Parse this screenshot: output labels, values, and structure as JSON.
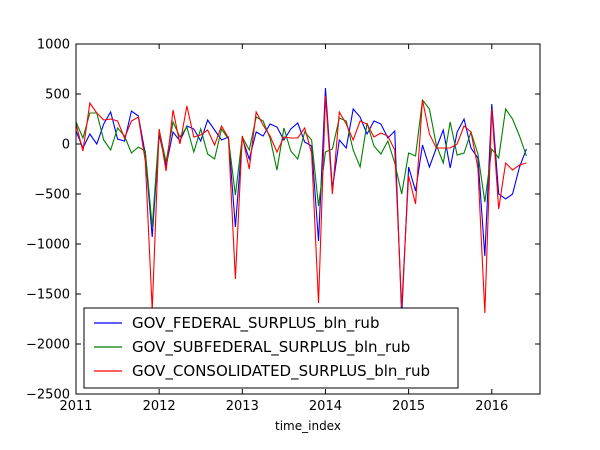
{
  "chart_data": {
    "type": "line",
    "xlabel": "time_index",
    "ylabel": "",
    "xlim": [
      2011.0,
      2016.58
    ],
    "ylim": [
      -2500,
      1000
    ],
    "x_ticks": [
      2011,
      2012,
      2013,
      2014,
      2015,
      2016
    ],
    "x_tick_labels": [
      "2011",
      "2012",
      "2013",
      "2014",
      "2015",
      "2016"
    ],
    "y_ticks": [
      1000,
      500,
      0,
      -500,
      -1000,
      -1500,
      -2000,
      -2500
    ],
    "y_tick_labels": [
      "1000",
      "500",
      "0",
      "−500",
      "−1000",
      "−1500",
      "−2000",
      "−2500"
    ],
    "x_start": 2011.0,
    "x_step_months": 1,
    "legend_position": "lower-left",
    "series": [
      {
        "name": "GOV_FEDERAL_SURPLUS_bln_rub",
        "color": "#0000ff",
        "values": [
          130,
          -40,
          100,
          0,
          200,
          320,
          50,
          30,
          330,
          280,
          -100,
          -930,
          100,
          -220,
          120,
          30,
          180,
          150,
          30,
          240,
          140,
          40,
          70,
          -830,
          60,
          -150,
          120,
          80,
          200,
          170,
          40,
          150,
          210,
          20,
          -20,
          -970,
          560,
          -450,
          40,
          -40,
          350,
          270,
          100,
          230,
          200,
          60,
          130,
          -1720,
          -230,
          -470,
          -10,
          -230,
          -40,
          140,
          -240,
          120,
          250,
          -40,
          -140,
          -1120,
          400,
          -500,
          -550,
          -500,
          -230,
          -50
        ],
        "notes": "monthly values read off the chart"
      },
      {
        "name": "GOV_SUBFEDERAL_SURPLUS_bln_rub",
        "color": "#008000",
        "values": [
          220,
          60,
          310,
          310,
          40,
          -60,
          160,
          80,
          -90,
          -30,
          -70,
          -830,
          140,
          -180,
          220,
          70,
          170,
          -80,
          150,
          -100,
          -150,
          150,
          50,
          -510,
          70,
          -60,
          270,
          230,
          60,
          -260,
          160,
          -70,
          -150,
          120,
          40,
          -620,
          -80,
          -50,
          260,
          230,
          -60,
          -230,
          210,
          -20,
          -100,
          30,
          -190,
          -500,
          -90,
          -120,
          440,
          350,
          -10,
          -190,
          220,
          -110,
          -90,
          120,
          -100,
          -580,
          -50,
          -140,
          350,
          250,
          80,
          -120
        ]
      },
      {
        "name": "GOV_CONSOLIDATED_SURPLUS_bln_rub",
        "color": "#ff0000",
        "values": [
          200,
          -70,
          410,
          310,
          240,
          250,
          230,
          60,
          230,
          270,
          -170,
          -1660,
          150,
          -270,
          340,
          0,
          380,
          70,
          90,
          140,
          -10,
          180,
          60,
          -1350,
          80,
          -250,
          320,
          190,
          80,
          -80,
          70,
          60,
          60,
          160,
          -90,
          -1590,
          480,
          -500,
          320,
          200,
          40,
          230,
          200,
          70,
          110,
          80,
          -60,
          -1630,
          -320,
          -600,
          440,
          100,
          -40,
          -40,
          -40,
          0,
          180,
          120,
          -240,
          -1690,
          350,
          -650,
          -190,
          -260,
          -210,
          -190
        ]
      }
    ]
  }
}
